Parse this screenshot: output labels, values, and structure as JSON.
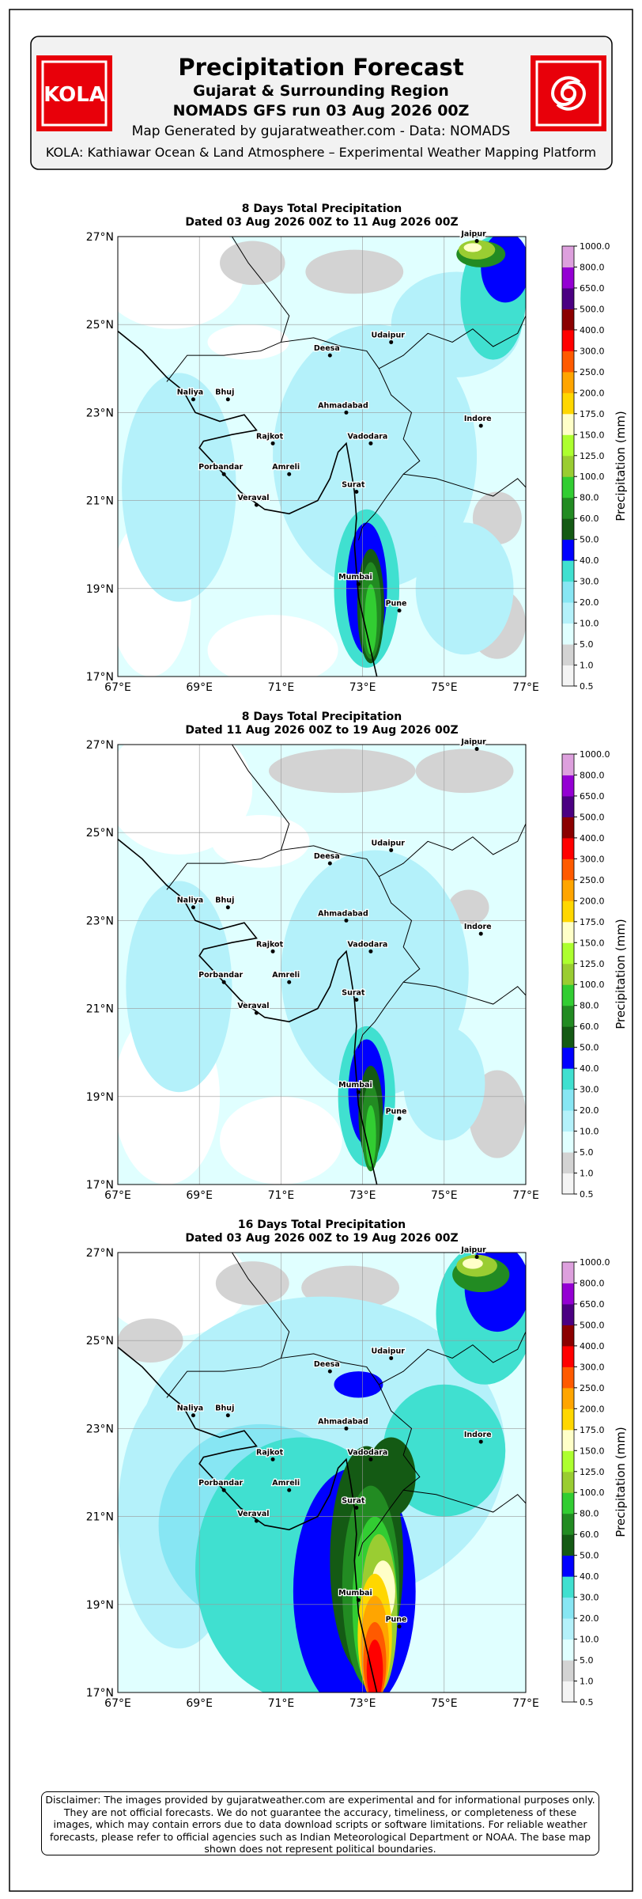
{
  "header": {
    "logo": "KOLA",
    "title": "Precipitation Forecast",
    "subtitle": "Gujarat & Surrounding Region",
    "run": "NOMADS GFS run 03 Aug 2026 00Z",
    "credit": "Map Generated by gujaratweather.com - Data: NOMADS",
    "platform": "KOLA: Kathiawar Ocean & Land Atmosphere – Experimental Weather Mapping Platform"
  },
  "maps": [
    {
      "title": "8 Days Total Precipitation",
      "dates": "Dated 03 Aug 2026 00Z to 11 Aug 2026 00Z"
    },
    {
      "title": "8 Days Total Precipitation",
      "dates": "Dated 11 Aug 2026 00Z to 19 Aug 2026 00Z"
    },
    {
      "title": "16 Days Total Precipitation",
      "dates": "Dated 03 Aug 2026 00Z to 19 Aug 2026 00Z"
    }
  ],
  "lat_labels": [
    "27°N",
    "25°N",
    "23°N",
    "21°N",
    "19°N",
    "17°N"
  ],
  "lon_labels": [
    "67°E",
    "69°E",
    "71°E",
    "73°E",
    "75°E",
    "77°E"
  ],
  "cities": [
    "Jaipur",
    "Udaipur",
    "Deesa",
    "Naliya",
    "Bhuj",
    "Ahmadabad",
    "Indore",
    "Rajkot",
    "Vadodara",
    "Porbandar",
    "Amreli",
    "Veraval",
    "Surat",
    "Mumbai",
    "Pune"
  ],
  "colorbar": {
    "label": "Precipitation (mm)",
    "ticks": [
      "0.5",
      "1.0",
      "5.0",
      "10.0",
      "20.0",
      "30.0",
      "40.0",
      "50.0",
      "60.0",
      "80.0",
      "100.0",
      "125.0",
      "150.0",
      "175.0",
      "200.0",
      "250.0",
      "300.0",
      "400.0",
      "500.0",
      "650.0",
      "800.0",
      "1000.0"
    ],
    "colors": [
      "#f4f4f4",
      "#d3d3d3",
      "#e0ffff",
      "#b4f1fa",
      "#87e6f3",
      "#40e0d0",
      "#0000ff",
      "#145a14",
      "#228b22",
      "#32cd32",
      "#9acd32",
      "#adff2f",
      "#ffffc8",
      "#ffd700",
      "#ffa500",
      "#ff5a00",
      "#ff0000",
      "#8b0000",
      "#4b0082",
      "#9400d3",
      "#dda0dd"
    ]
  },
  "disclaimer": "Disclaimer: The images provided by gujaratweather.com are experimental and for informational purposes only. They are not official forecasts. We do not guarantee the accuracy, timeliness, or completeness of these images, which may contain errors due to data download scripts or software limitations. For reliable weather forecasts, please refer to official agencies such as Indian Meteorological Department or NOAA. The base map shown does not represent political boundaries."
}
